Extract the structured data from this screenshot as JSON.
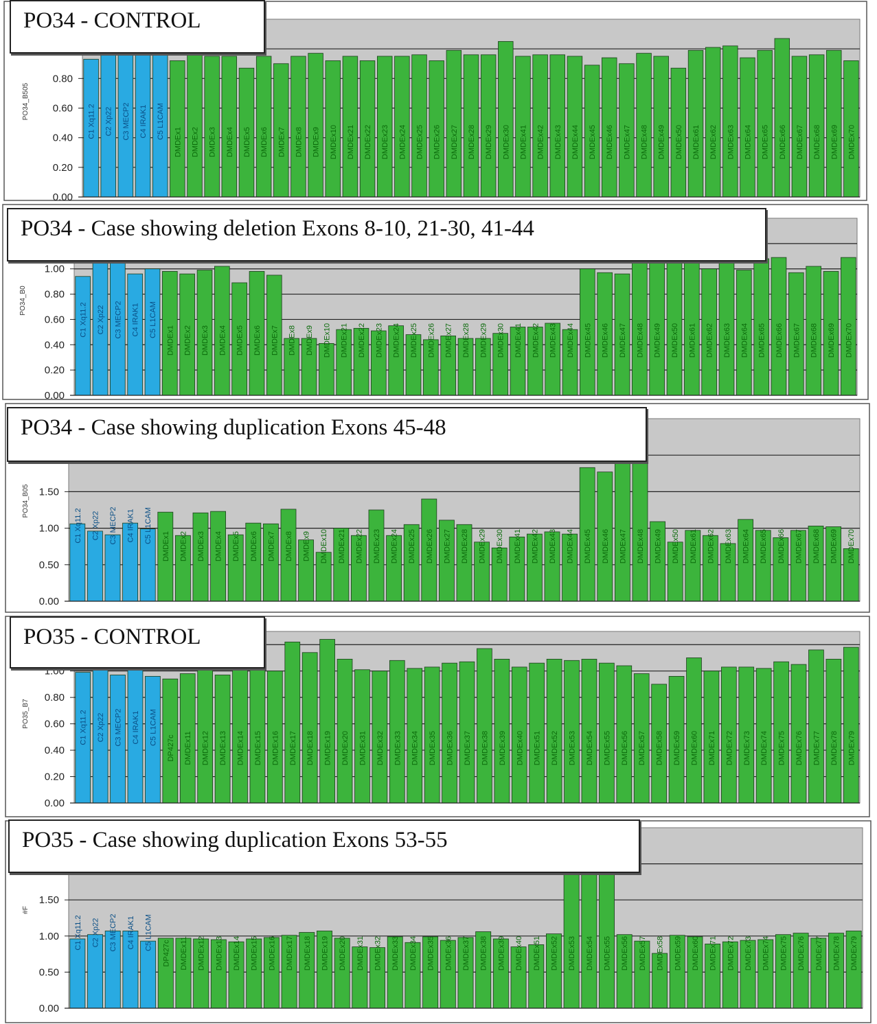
{
  "colors": {
    "control_bar": "#29aae2",
    "exon_bar": "#3cb43c",
    "plot_bg": "#c8c8c8",
    "label_control": "#0a4f86",
    "label_exon": "#0a6a0a"
  },
  "chart_data": [
    {
      "type": "bar",
      "title": "PO34 - CONTROL",
      "ylabel": "PO34_B505",
      "ylim": [
        0,
        1.2
      ],
      "yticks": [
        "0.00",
        "0.20",
        "0.40",
        "0.60",
        "0.80"
      ],
      "categories": [
        "C1 Xq11.2",
        "C2 Xp22",
        "C3 MECP2",
        "C4 IRAK1",
        "C5 L1CAM",
        "DMDEx1",
        "DMDEx2",
        "DMDEx3",
        "DMDEx4",
        "DMDEx5",
        "DMDEx6",
        "DMDEx7",
        "DMDEx8",
        "DMDEx9",
        "DMDEx10",
        "DMDEx21",
        "DMDEx22",
        "DMDEx23",
        "DMDEx24",
        "DMDEx25",
        "DMDEx26",
        "DMDEx27",
        "DMDEx28",
        "DMDEx29",
        "DMDEx30",
        "DMDEx41",
        "DMDEx42",
        "DMDEx43",
        "DMDEx44",
        "DMDEx45",
        "DMDEx46",
        "DMDEx47",
        "DMDEx48",
        "DMDEx49",
        "DMDEx50",
        "DMDEx61",
        "DMDEx62",
        "DMDEx63",
        "DMDEx64",
        "DMDEx65",
        "DMDEx66",
        "DMDEx67",
        "DMDEx68",
        "DMDEx69",
        "DMDEx70"
      ],
      "values": [
        0.93,
        1.05,
        1.05,
        1.05,
        1.05,
        0.92,
        0.97,
        0.95,
        0.95,
        0.87,
        0.95,
        0.9,
        0.95,
        0.97,
        0.92,
        0.95,
        0.92,
        0.95,
        0.95,
        0.96,
        0.92,
        0.99,
        0.96,
        0.96,
        1.05,
        0.95,
        0.96,
        0.96,
        0.95,
        0.89,
        0.94,
        0.9,
        0.97,
        0.95,
        0.87,
        0.99,
        1.01,
        1.02,
        0.94,
        0.99,
        1.07,
        0.95,
        0.96,
        0.99,
        0.92
      ]
    },
    {
      "type": "bar",
      "title": "PO34 - Case showing deletion Exons 8-10, 21-30, 41-44",
      "ylabel": "PO34_B0",
      "ylim": [
        0,
        1.4
      ],
      "yticks": [
        "0.00",
        "0.20",
        "0.40",
        "0.60",
        "0.80",
        "1.00"
      ],
      "categories": [
        "C1 Xq11.2",
        "C2 Xp22",
        "C3 MECP2",
        "C4 IRAK1",
        "C5 L1CAM",
        "DMDEx1",
        "DMDEx2",
        "DMDEx3",
        "DMDEx4",
        "DMDEx5",
        "DMDEx6",
        "DMDEx7",
        "DMDEx8",
        "DMDEx9",
        "DMDEx10",
        "DMDEx21",
        "DMDEx22",
        "DMDEx23",
        "DMDEx24",
        "DMDEx25",
        "DMDEx26",
        "DMDEx27",
        "DMDEx28",
        "DMDEx29",
        "DMDEx30",
        "DMDEx41",
        "DMDEx42",
        "DMDEx43",
        "DMDEx44",
        "DMDEx45",
        "DMDEx46",
        "DMDEx47",
        "DMDEx48",
        "DMDEx49",
        "DMDEx50",
        "DMDEx61",
        "DMDEx62",
        "DMDEx63",
        "DMDEx64",
        "DMDEx65",
        "DMDEx66",
        "DMDEx67",
        "DMDEx68",
        "DMDEx69",
        "DMDEx70"
      ],
      "values": [
        0.94,
        1.1,
        1.1,
        0.96,
        1.0,
        0.98,
        0.96,
        0.99,
        1.02,
        0.89,
        0.98,
        0.95,
        0.45,
        0.45,
        0.41,
        0.52,
        0.53,
        0.51,
        0.55,
        0.48,
        0.44,
        0.47,
        0.45,
        0.45,
        0.49,
        0.54,
        0.54,
        0.57,
        0.52,
        1.0,
        0.97,
        0.96,
        1.1,
        1.1,
        1.1,
        1.1,
        1.0,
        1.1,
        0.99,
        1.08,
        1.09,
        0.97,
        1.02,
        0.98,
        1.09
      ]
    },
    {
      "type": "bar",
      "title": "PO34 - Case showing duplication Exons 45-48",
      "ylabel": "PO34_B05",
      "ylim": [
        0,
        2.5
      ],
      "yticks": [
        "0.00",
        "0.50",
        "1.00",
        "1.50"
      ],
      "categories": [
        "C1 Xq11.2",
        "C2 Xp22",
        "C3 MECP2",
        "C4 IRAK1",
        "C5 L1CAM",
        "DMDEx1",
        "DMDEx2",
        "DMDEx3",
        "DMDEx4",
        "DMDEx5",
        "DMDEx6",
        "DMDEx7",
        "DMDEx8",
        "DMDEx9",
        "DMDEx10",
        "DMDEx21",
        "DMDEx22",
        "DMDEx23",
        "DMDEx24",
        "DMDEx25",
        "DMDEx26",
        "DMDEx27",
        "DMDEx28",
        "DMDEx29",
        "DMDEx30",
        "DMDEx41",
        "DMDEx42",
        "DMDEx43",
        "DMDEx44",
        "DMDEx45",
        "DMDEx46",
        "DMDEx47",
        "DMDEx48",
        "DMDEx49",
        "DMDEx50",
        "DMDEx61",
        "DMDEx62",
        "DMDEx63",
        "DMDEx64",
        "DMDEx65",
        "DMDEx66",
        "DMDEx67",
        "DMDEx68",
        "DMDEx69",
        "DMDEx70"
      ],
      "values": [
        1.06,
        0.96,
        0.91,
        1.07,
        0.99,
        1.22,
        0.9,
        1.21,
        1.23,
        0.91,
        1.07,
        1.06,
        1.26,
        0.84,
        0.67,
        1.0,
        0.9,
        1.25,
        0.9,
        1.05,
        1.4,
        1.11,
        1.05,
        0.81,
        0.73,
        0.88,
        0.92,
        0.95,
        0.92,
        1.83,
        1.77,
        2.1,
        2.1,
        1.09,
        0.81,
        0.97,
        0.9,
        0.79,
        1.12,
        0.97,
        0.87,
        0.97,
        1.03,
        1.02,
        0.72
      ]
    },
    {
      "type": "bar",
      "title": "PO35 - CONTROL",
      "ylabel": "PO35_B7",
      "ylim": [
        0,
        1.3
      ],
      "yticks": [
        "0.00",
        "0.20",
        "0.40",
        "0.60",
        "0.80",
        "1.00"
      ],
      "categories": [
        "C1 Xq11.2",
        "C2 Xp22",
        "C3 MECP2",
        "C4 IRAK1",
        "C5 L1CAM",
        "DP427c",
        "DMDEx11",
        "DMDEx12",
        "DMDEx13",
        "DMDEx14",
        "DMDEx15",
        "DMDEx16",
        "DMDEx17",
        "DMDEx18",
        "DMDEx19",
        "DMDEx20",
        "DMDEx31",
        "DMDEx32",
        "DMDEx33",
        "DMDEx34",
        "DMDEx35",
        "DMDEx36",
        "DMDEx37",
        "DMDEx38",
        "DMDEx39",
        "DMDEx40",
        "DMDEx51",
        "DMDEx52",
        "DMDEx53",
        "DMDEx54",
        "DMDEx55",
        "DMDEx56",
        "DMDEx57",
        "DMDEx58",
        "DMDEx59",
        "DMDEx60",
        "DMDEx71",
        "DMDEx72",
        "DMDEx73",
        "DMDEx74",
        "DMDEx75",
        "DMDEx76",
        "DMDEx77",
        "DMDEx78",
        "DMDEx79"
      ],
      "values": [
        0.99,
        1.01,
        0.97,
        1.1,
        0.96,
        0.94,
        0.98,
        1.05,
        0.97,
        1.05,
        1.01,
        1.0,
        1.22,
        1.14,
        1.24,
        1.09,
        1.01,
        1.0,
        1.08,
        1.02,
        1.03,
        1.06,
        1.07,
        1.17,
        1.09,
        1.03,
        1.06,
        1.09,
        1.08,
        1.09,
        1.06,
        1.04,
        0.98,
        0.9,
        0.96,
        1.1,
        1.0,
        1.03,
        1.03,
        1.02,
        1.07,
        1.05,
        1.16,
        1.09,
        1.18
      ]
    },
    {
      "type": "bar",
      "title": "PO35 - Case showing duplication Exons 53-55",
      "ylabel": "#F",
      "ylim": [
        0,
        2.5
      ],
      "yticks": [
        "0.00",
        "0.50",
        "1.00",
        "1.50"
      ],
      "categories": [
        "C1 Xq11.2",
        "C2 Xp22",
        "C3 MECP2",
        "C4 IRAK1",
        "C5 L1CAM",
        "DP427c",
        "DMDEx11",
        "DMDEx12",
        "DMDEx13",
        "DMDEx14",
        "DMDEx15",
        "DMDEx16",
        "DMDEx17",
        "DMDEx18",
        "DMDEx19",
        "DMDEx20",
        "DMDEx31",
        "DMDEx32",
        "DMDEx33",
        "DMDEx34",
        "DMDEx35",
        "DMDEx36",
        "DMDEx37",
        "DMDEx38",
        "DMDEx39",
        "DMDEx40",
        "DMDEx51",
        "DMDEx52",
        "DMDEx53",
        "DMDEx54",
        "DMDEx55",
        "DMDEx56",
        "DMDEx57",
        "DMDEx58",
        "DMDEx59",
        "DMDEx60",
        "DMDEx71",
        "DMDEx72",
        "DMDEx73",
        "DMDEx74",
        "DMDEx75",
        "DMDEx76",
        "DMDEx77",
        "DMDEx78",
        "DMDEx79"
      ],
      "values": [
        0.96,
        1.02,
        1.07,
        1.07,
        0.93,
        0.97,
        0.97,
        0.96,
        0.95,
        0.92,
        0.96,
        0.98,
        1.01,
        1.05,
        1.07,
        0.97,
        0.85,
        0.84,
        0.99,
        0.91,
        0.99,
        0.94,
        0.98,
        1.06,
        0.96,
        0.85,
        0.88,
        1.03,
        2.2,
        2.2,
        2.2,
        1.02,
        0.93,
        0.76,
        1.01,
        0.99,
        0.89,
        0.92,
        0.94,
        0.95,
        1.02,
        1.04,
        0.97,
        1.04,
        1.07
      ]
    }
  ]
}
